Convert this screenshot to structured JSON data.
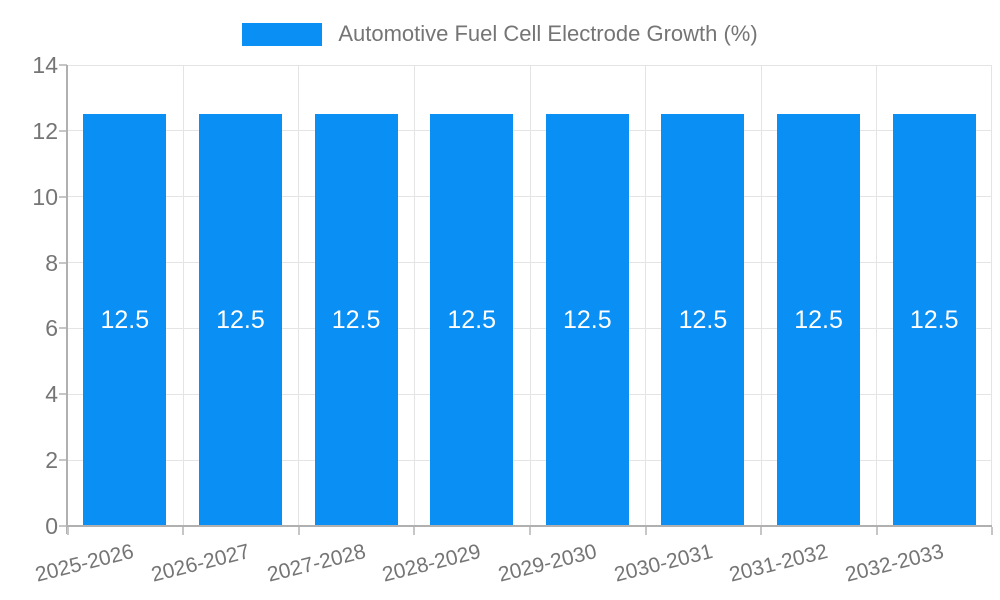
{
  "legend": {
    "label": "Automotive Fuel Cell Electrode Growth (%)",
    "position": "top"
  },
  "chart_data": {
    "type": "bar",
    "title": "",
    "series_name": "Automotive Fuel Cell Electrode Growth (%)",
    "categories": [
      "2025-2026",
      "2026-2027",
      "2027-2028",
      "2028-2029",
      "2029-2030",
      "2030-2031",
      "2031-2032",
      "2032-2033"
    ],
    "values": [
      12.5,
      12.5,
      12.5,
      12.5,
      12.5,
      12.5,
      12.5,
      12.5
    ],
    "bar_value_labels": [
      "12.5",
      "12.5",
      "12.5",
      "12.5",
      "12.5",
      "12.5",
      "12.5",
      "12.5"
    ],
    "xlabel": "",
    "ylabel": "",
    "ylim": [
      0,
      14
    ],
    "yticks": [
      0,
      2,
      4,
      6,
      8,
      10,
      12,
      14
    ],
    "grid": true,
    "legend_position": "top",
    "colors": {
      "bar": "#0a8ff5",
      "grid": "#e4e4e4",
      "axis": "#b0b0b0",
      "tick": "#c6c6c6",
      "text": "#757575",
      "bar_label": "#ffffff"
    }
  }
}
